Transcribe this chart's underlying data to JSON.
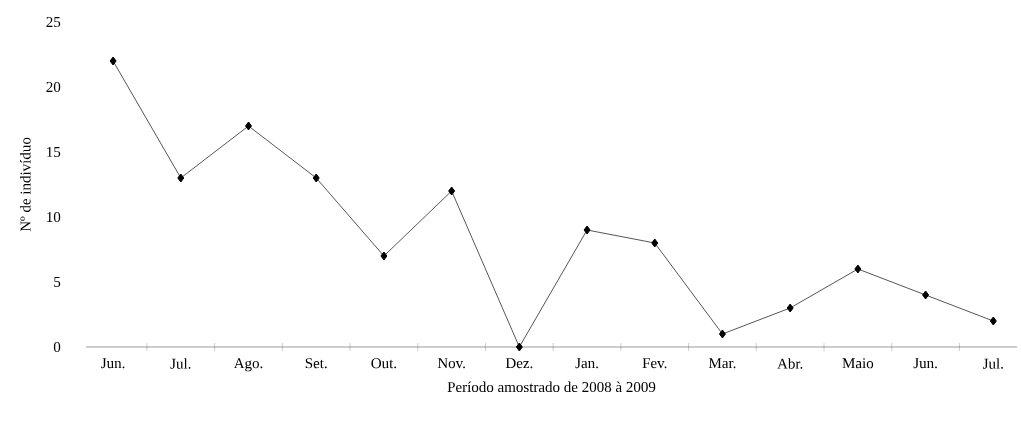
{
  "chart_data": {
    "type": "line",
    "xlabel": "Período amostrado de 2008 à 2009",
    "ylabel": "Nº de indivíduo",
    "categories": [
      "Jun.",
      "Jul.",
      "Ago.",
      "Set.",
      "Out.",
      "Nov.",
      "Dez.",
      "Jan.",
      "Fev.",
      "Mar.",
      "Abr.",
      "Maio",
      "Jun.",
      "Jul."
    ],
    "series": [
      {
        "color": "#555555",
        "values": [
          22,
          13,
          17,
          13,
          7,
          12,
          0,
          9,
          8,
          1,
          3,
          6,
          4,
          2
        ]
      }
    ],
    "ylim": [
      0,
      25
    ],
    "yticks": [
      0,
      5,
      10,
      15,
      20,
      25
    ],
    "marker": "diamond",
    "line_style": "solid"
  }
}
